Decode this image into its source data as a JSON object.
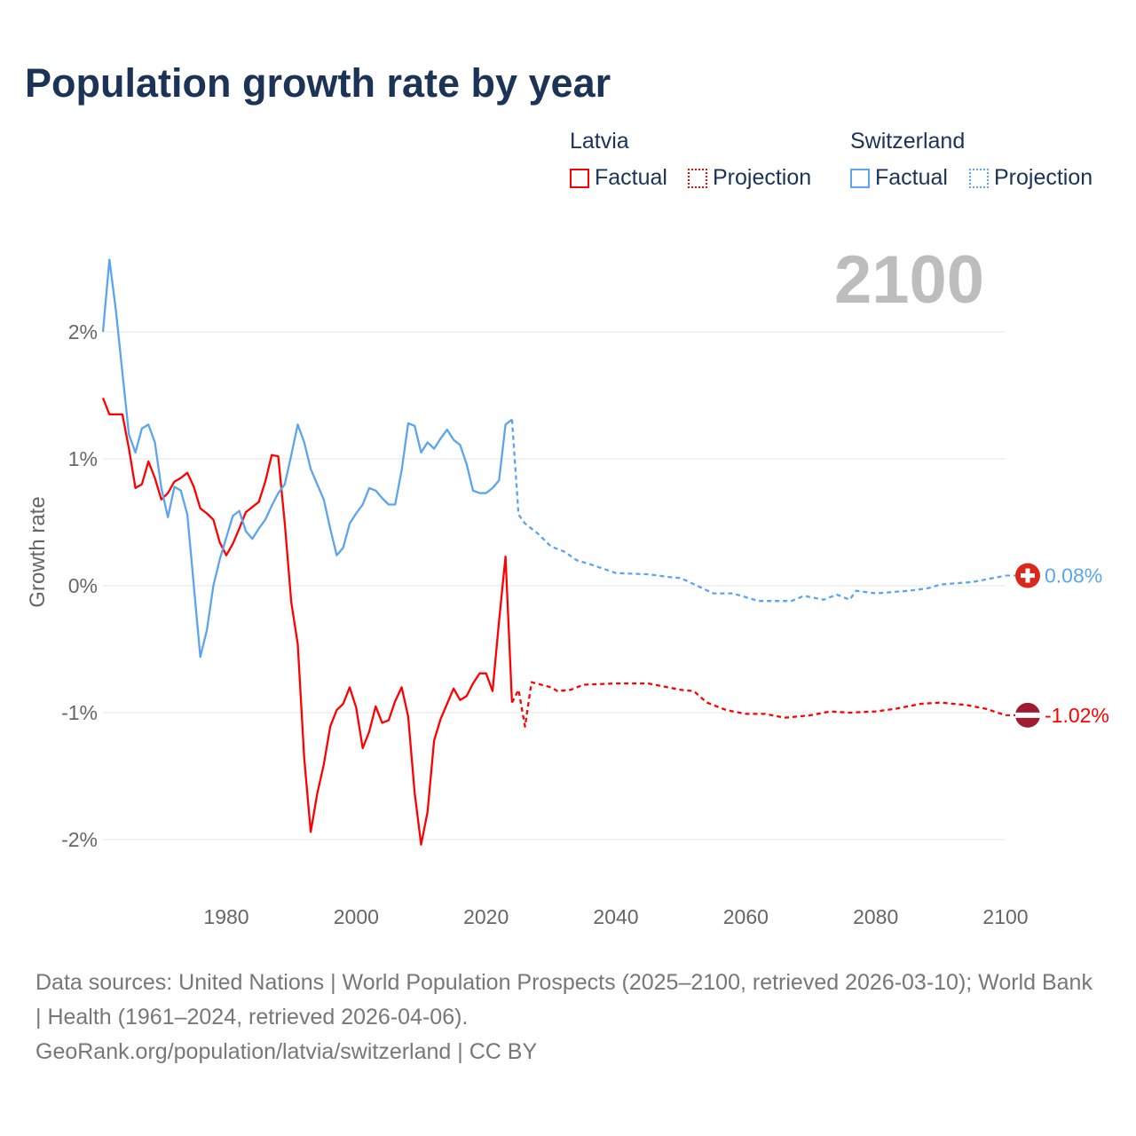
{
  "title": "Population growth rate by year",
  "legend": {
    "groups": [
      {
        "name": "Latvia",
        "factual": "Factual",
        "projection": "Projection",
        "color": "#ff0000"
      },
      {
        "name": "Switzerland",
        "factual": "Factual",
        "projection": "Projection",
        "color": "#5ba4ee"
      }
    ]
  },
  "current_year": "2100",
  "footer": {
    "sources": "Data sources: United Nations | World Population Prospects (2025–2100, retrieved 2026-03-10); World Bank | Health (1961–2024, retrieved 2026-04-06).",
    "link": "GeoRank.org/population/latvia/switzerland | CC BY"
  },
  "chart_data": {
    "type": "line",
    "title": "Population growth rate by year",
    "xlabel": "",
    "ylabel": "Growth rate",
    "xlim": [
      1961,
      2100
    ],
    "ylim": [
      -2.4,
      2.7
    ],
    "x_ticks": [
      "1980",
      "2000",
      "2020",
      "2040",
      "2060",
      "2080",
      "2100"
    ],
    "y_ticks": [
      {
        "v": 2,
        "label": "2%"
      },
      {
        "v": 1,
        "label": "1%"
      },
      {
        "v": 0,
        "label": "0%"
      },
      {
        "v": -1,
        "label": "-1%"
      },
      {
        "v": -2,
        "label": "-2%"
      }
    ],
    "grid": true,
    "series": [
      {
        "name": "Latvia",
        "kind": "factual",
        "color": "#ff0000",
        "x": [
          1961,
          1962,
          1963,
          1964,
          1965,
          1966,
          1967,
          1968,
          1969,
          1970,
          1971,
          1972,
          1973,
          1974,
          1975,
          1976,
          1977,
          1978,
          1979,
          1980,
          1981,
          1982,
          1983,
          1984,
          1985,
          1986,
          1987,
          1988,
          1989,
          1990,
          1991,
          1992,
          1993,
          1994,
          1995,
          1996,
          1997,
          1998,
          1999,
          2000,
          2001,
          2002,
          2003,
          2004,
          2005,
          2006,
          2007,
          2008,
          2009,
          2010,
          2011,
          2012,
          2013,
          2014,
          2015,
          2016,
          2017,
          2018,
          2019,
          2020,
          2021,
          2022,
          2023,
          2024
        ],
        "y": [
          1.48,
          1.35,
          1.35,
          1.35,
          1.08,
          0.77,
          0.8,
          0.98,
          0.85,
          0.68,
          0.73,
          0.82,
          0.85,
          0.89,
          0.78,
          0.61,
          0.57,
          0.52,
          0.34,
          0.24,
          0.33,
          0.45,
          0.58,
          0.62,
          0.66,
          0.82,
          1.03,
          1.02,
          0.49,
          -0.13,
          -0.46,
          -1.36,
          -1.94,
          -1.64,
          -1.41,
          -1.11,
          -0.98,
          -0.93,
          -0.8,
          -0.96,
          -1.28,
          -1.15,
          -0.95,
          -1.08,
          -1.06,
          -0.91,
          -0.8,
          -1.03,
          -1.63,
          -2.04,
          -1.78,
          -1.22,
          -1.05,
          -0.93,
          -0.81,
          -0.9,
          -0.87,
          -0.77,
          -0.69,
          -0.69,
          -0.83,
          -0.28,
          0.23,
          -0.92
        ]
      },
      {
        "name": "Latvia",
        "kind": "projection",
        "color": "#ff0000",
        "x": [
          2024,
          2025,
          2026,
          2027,
          2030,
          2031,
          2033,
          2035,
          2040,
          2045,
          2050,
          2052,
          2054,
          2057,
          2060,
          2063,
          2066,
          2070,
          2073,
          2076,
          2080,
          2083,
          2087,
          2090,
          2094,
          2097,
          2100
        ],
        "y": [
          -0.92,
          -0.82,
          -1.11,
          -0.76,
          -0.8,
          -0.83,
          -0.82,
          -0.78,
          -0.77,
          -0.77,
          -0.82,
          -0.83,
          -0.92,
          -0.98,
          -1.01,
          -1.01,
          -1.04,
          -1.02,
          -0.99,
          -1.0,
          -0.99,
          -0.97,
          -0.93,
          -0.92,
          -0.94,
          -0.97,
          -1.02
        ]
      },
      {
        "name": "Switzerland",
        "kind": "factual",
        "color": "#5ba4ee",
        "x": [
          1961,
          1962,
          1963,
          1964,
          1965,
          1966,
          1967,
          1968,
          1969,
          1970,
          1971,
          1972,
          1973,
          1974,
          1975,
          1976,
          1977,
          1978,
          1979,
          1980,
          1981,
          1982,
          1983,
          1984,
          1985,
          1986,
          1987,
          1988,
          1989,
          1990,
          1991,
          1992,
          1993,
          1994,
          1995,
          1996,
          1997,
          1998,
          1999,
          2000,
          2001,
          2002,
          2003,
          2004,
          2005,
          2006,
          2007,
          2008,
          2009,
          2010,
          2011,
          2012,
          2013,
          2014,
          2015,
          2016,
          2017,
          2018,
          2019,
          2020,
          2021,
          2022,
          2023,
          2024
        ],
        "y": [
          2.0,
          2.57,
          2.17,
          1.68,
          1.19,
          1.05,
          1.24,
          1.27,
          1.13,
          0.77,
          0.54,
          0.78,
          0.75,
          0.56,
          0.0,
          -0.56,
          -0.35,
          0.0,
          0.21,
          0.38,
          0.55,
          0.59,
          0.43,
          0.37,
          0.45,
          0.52,
          0.63,
          0.73,
          0.8,
          1.03,
          1.27,
          1.13,
          0.92,
          0.8,
          0.68,
          0.45,
          0.24,
          0.3,
          0.49,
          0.57,
          0.64,
          0.77,
          0.75,
          0.69,
          0.64,
          0.64,
          0.91,
          1.28,
          1.26,
          1.05,
          1.13,
          1.08,
          1.16,
          1.23,
          1.15,
          1.11,
          0.96,
          0.75,
          0.73,
          0.73,
          0.77,
          0.83,
          1.27,
          1.31
        ]
      },
      {
        "name": "Switzerland",
        "kind": "projection",
        "color": "#5ba4ee",
        "x": [
          2024,
          2025,
          2026,
          2028,
          2030,
          2032,
          2034,
          2036,
          2040,
          2045,
          2048,
          2050,
          2055,
          2058,
          2060,
          2062,
          2065,
          2067,
          2069,
          2072,
          2074,
          2076,
          2077,
          2080,
          2085,
          2088,
          2090,
          2095,
          2100
        ],
        "y": [
          1.31,
          0.56,
          0.49,
          0.41,
          0.31,
          0.27,
          0.2,
          0.17,
          0.1,
          0.09,
          0.07,
          0.06,
          -0.06,
          -0.06,
          -0.09,
          -0.12,
          -0.12,
          -0.12,
          -0.08,
          -0.11,
          -0.07,
          -0.11,
          -0.04,
          -0.06,
          -0.04,
          -0.02,
          0.01,
          0.03,
          0.08
        ]
      }
    ],
    "end_labels": [
      {
        "series": "Switzerland",
        "value": 0.08,
        "label": "0.08%",
        "color": "#5ba4ee"
      },
      {
        "series": "Latvia",
        "value": -1.02,
        "label": "-1.02%",
        "color": "#ff0000"
      }
    ]
  }
}
